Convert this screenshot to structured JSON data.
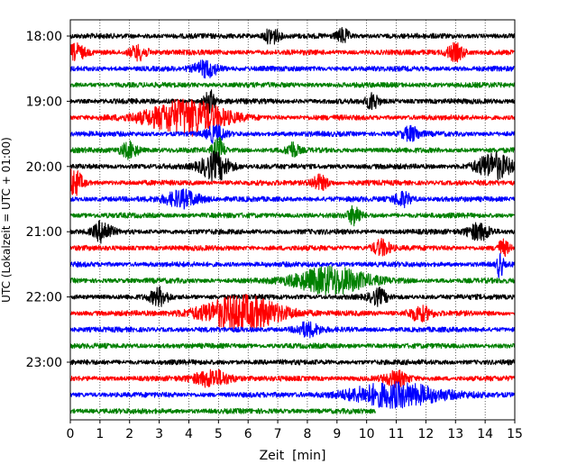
{
  "chart_data": {
    "type": "line",
    "subtype": "helicorder",
    "xlabel": "Zeit  [min]",
    "ylabel": "UTC (Lokalzeit = UTC + 01:00)",
    "xlim": [
      0,
      15
    ],
    "xticks": [
      0,
      1,
      2,
      3,
      4,
      5,
      6,
      7,
      8,
      9,
      10,
      11,
      12,
      13,
      14,
      15
    ],
    "yticks": [
      "18:00",
      "19:00",
      "20:00",
      "21:00",
      "22:00",
      "23:00"
    ],
    "traces_per_hour": 4,
    "minutes_per_trace": 15,
    "grid": {
      "x": "dotted vertical at each minute",
      "y": "none"
    },
    "colors_cycle": [
      "#000000",
      "#ff0000",
      "#0000ff",
      "#008000"
    ],
    "traces": [
      {
        "start": "18:00",
        "color": "#000000",
        "events": [
          {
            "t": 6.8,
            "amp": 1.6,
            "dur": 0.25
          },
          {
            "t": 9.2,
            "amp": 1.4,
            "dur": 0.2
          }
        ]
      },
      {
        "start": "18:15",
        "color": "#ff0000",
        "events": [
          {
            "t": 0.2,
            "amp": 1.4,
            "dur": 0.3
          },
          {
            "t": 2.3,
            "amp": 1.4,
            "dur": 0.3
          },
          {
            "t": 13.0,
            "amp": 1.6,
            "dur": 0.3
          }
        ]
      },
      {
        "start": "18:30",
        "color": "#0000ff",
        "events": [
          {
            "t": 4.6,
            "amp": 1.5,
            "dur": 0.4
          }
        ]
      },
      {
        "start": "18:45",
        "color": "#008000",
        "events": []
      },
      {
        "start": "19:00",
        "color": "#000000",
        "events": [
          {
            "t": 4.7,
            "amp": 2.0,
            "dur": 0.2
          },
          {
            "t": 10.2,
            "amp": 1.6,
            "dur": 0.2
          }
        ]
      },
      {
        "start": "19:15",
        "color": "#ff0000",
        "events": [
          {
            "t": 3.9,
            "amp": 3.4,
            "dur": 1.3
          }
        ]
      },
      {
        "start": "19:30",
        "color": "#0000ff",
        "events": [
          {
            "t": 4.9,
            "amp": 1.5,
            "dur": 0.3
          },
          {
            "t": 11.5,
            "amp": 1.3,
            "dur": 0.3
          }
        ]
      },
      {
        "start": "19:45",
        "color": "#008000",
        "events": [
          {
            "t": 2.0,
            "amp": 1.5,
            "dur": 0.3
          },
          {
            "t": 5.0,
            "amp": 2.2,
            "dur": 0.2
          },
          {
            "t": 7.5,
            "amp": 1.4,
            "dur": 0.2
          }
        ]
      },
      {
        "start": "20:00",
        "color": "#000000",
        "events": [
          {
            "t": 4.9,
            "amp": 2.6,
            "dur": 0.5
          },
          {
            "t": 14.3,
            "amp": 2.4,
            "dur": 0.6
          }
        ]
      },
      {
        "start": "20:15",
        "color": "#ff0000",
        "events": [
          {
            "t": 0.1,
            "amp": 2.6,
            "dur": 0.3
          },
          {
            "t": 8.4,
            "amp": 1.4,
            "dur": 0.3
          }
        ]
      },
      {
        "start": "20:30",
        "color": "#0000ff",
        "events": [
          {
            "t": 3.8,
            "amp": 1.6,
            "dur": 0.6
          },
          {
            "t": 11.2,
            "amp": 1.4,
            "dur": 0.3
          }
        ]
      },
      {
        "start": "20:45",
        "color": "#008000",
        "events": [
          {
            "t": 9.6,
            "amp": 2.0,
            "dur": 0.2
          }
        ]
      },
      {
        "start": "21:00",
        "color": "#000000",
        "events": [
          {
            "t": 1.1,
            "amp": 2.0,
            "dur": 0.3
          },
          {
            "t": 13.8,
            "amp": 1.6,
            "dur": 0.4
          }
        ]
      },
      {
        "start": "21:15",
        "color": "#ff0000",
        "events": [
          {
            "t": 10.5,
            "amp": 1.5,
            "dur": 0.3
          },
          {
            "t": 14.6,
            "amp": 1.4,
            "dur": 0.2
          }
        ]
      },
      {
        "start": "21:30",
        "color": "#0000ff",
        "events": [
          {
            "t": 14.5,
            "amp": 2.6,
            "dur": 0.1
          }
        ]
      },
      {
        "start": "21:45",
        "color": "#008000",
        "events": [
          {
            "t": 8.8,
            "amp": 2.6,
            "dur": 1.2
          }
        ]
      },
      {
        "start": "22:00",
        "color": "#000000",
        "events": [
          {
            "t": 3.0,
            "amp": 1.6,
            "dur": 0.3
          },
          {
            "t": 10.4,
            "amp": 1.4,
            "dur": 0.3
          }
        ]
      },
      {
        "start": "22:15",
        "color": "#ff0000",
        "events": [
          {
            "t": 5.8,
            "amp": 3.2,
            "dur": 1.4
          },
          {
            "t": 11.8,
            "amp": 1.4,
            "dur": 0.4
          }
        ]
      },
      {
        "start": "22:30",
        "color": "#0000ff",
        "events": [
          {
            "t": 8.0,
            "amp": 1.3,
            "dur": 0.4
          }
        ]
      },
      {
        "start": "22:45",
        "color": "#008000",
        "events": []
      },
      {
        "start": "23:00",
        "color": "#000000",
        "events": []
      },
      {
        "start": "23:15",
        "color": "#ff0000",
        "events": [
          {
            "t": 4.8,
            "amp": 1.6,
            "dur": 0.6
          },
          {
            "t": 11.0,
            "amp": 1.3,
            "dur": 0.4
          }
        ]
      },
      {
        "start": "23:30",
        "color": "#0000ff",
        "events": [
          {
            "t": 11.0,
            "amp": 2.2,
            "dur": 1.6
          }
        ]
      },
      {
        "start": "23:45",
        "color": "#008000",
        "events": [],
        "end_min": 10.3
      }
    ]
  }
}
